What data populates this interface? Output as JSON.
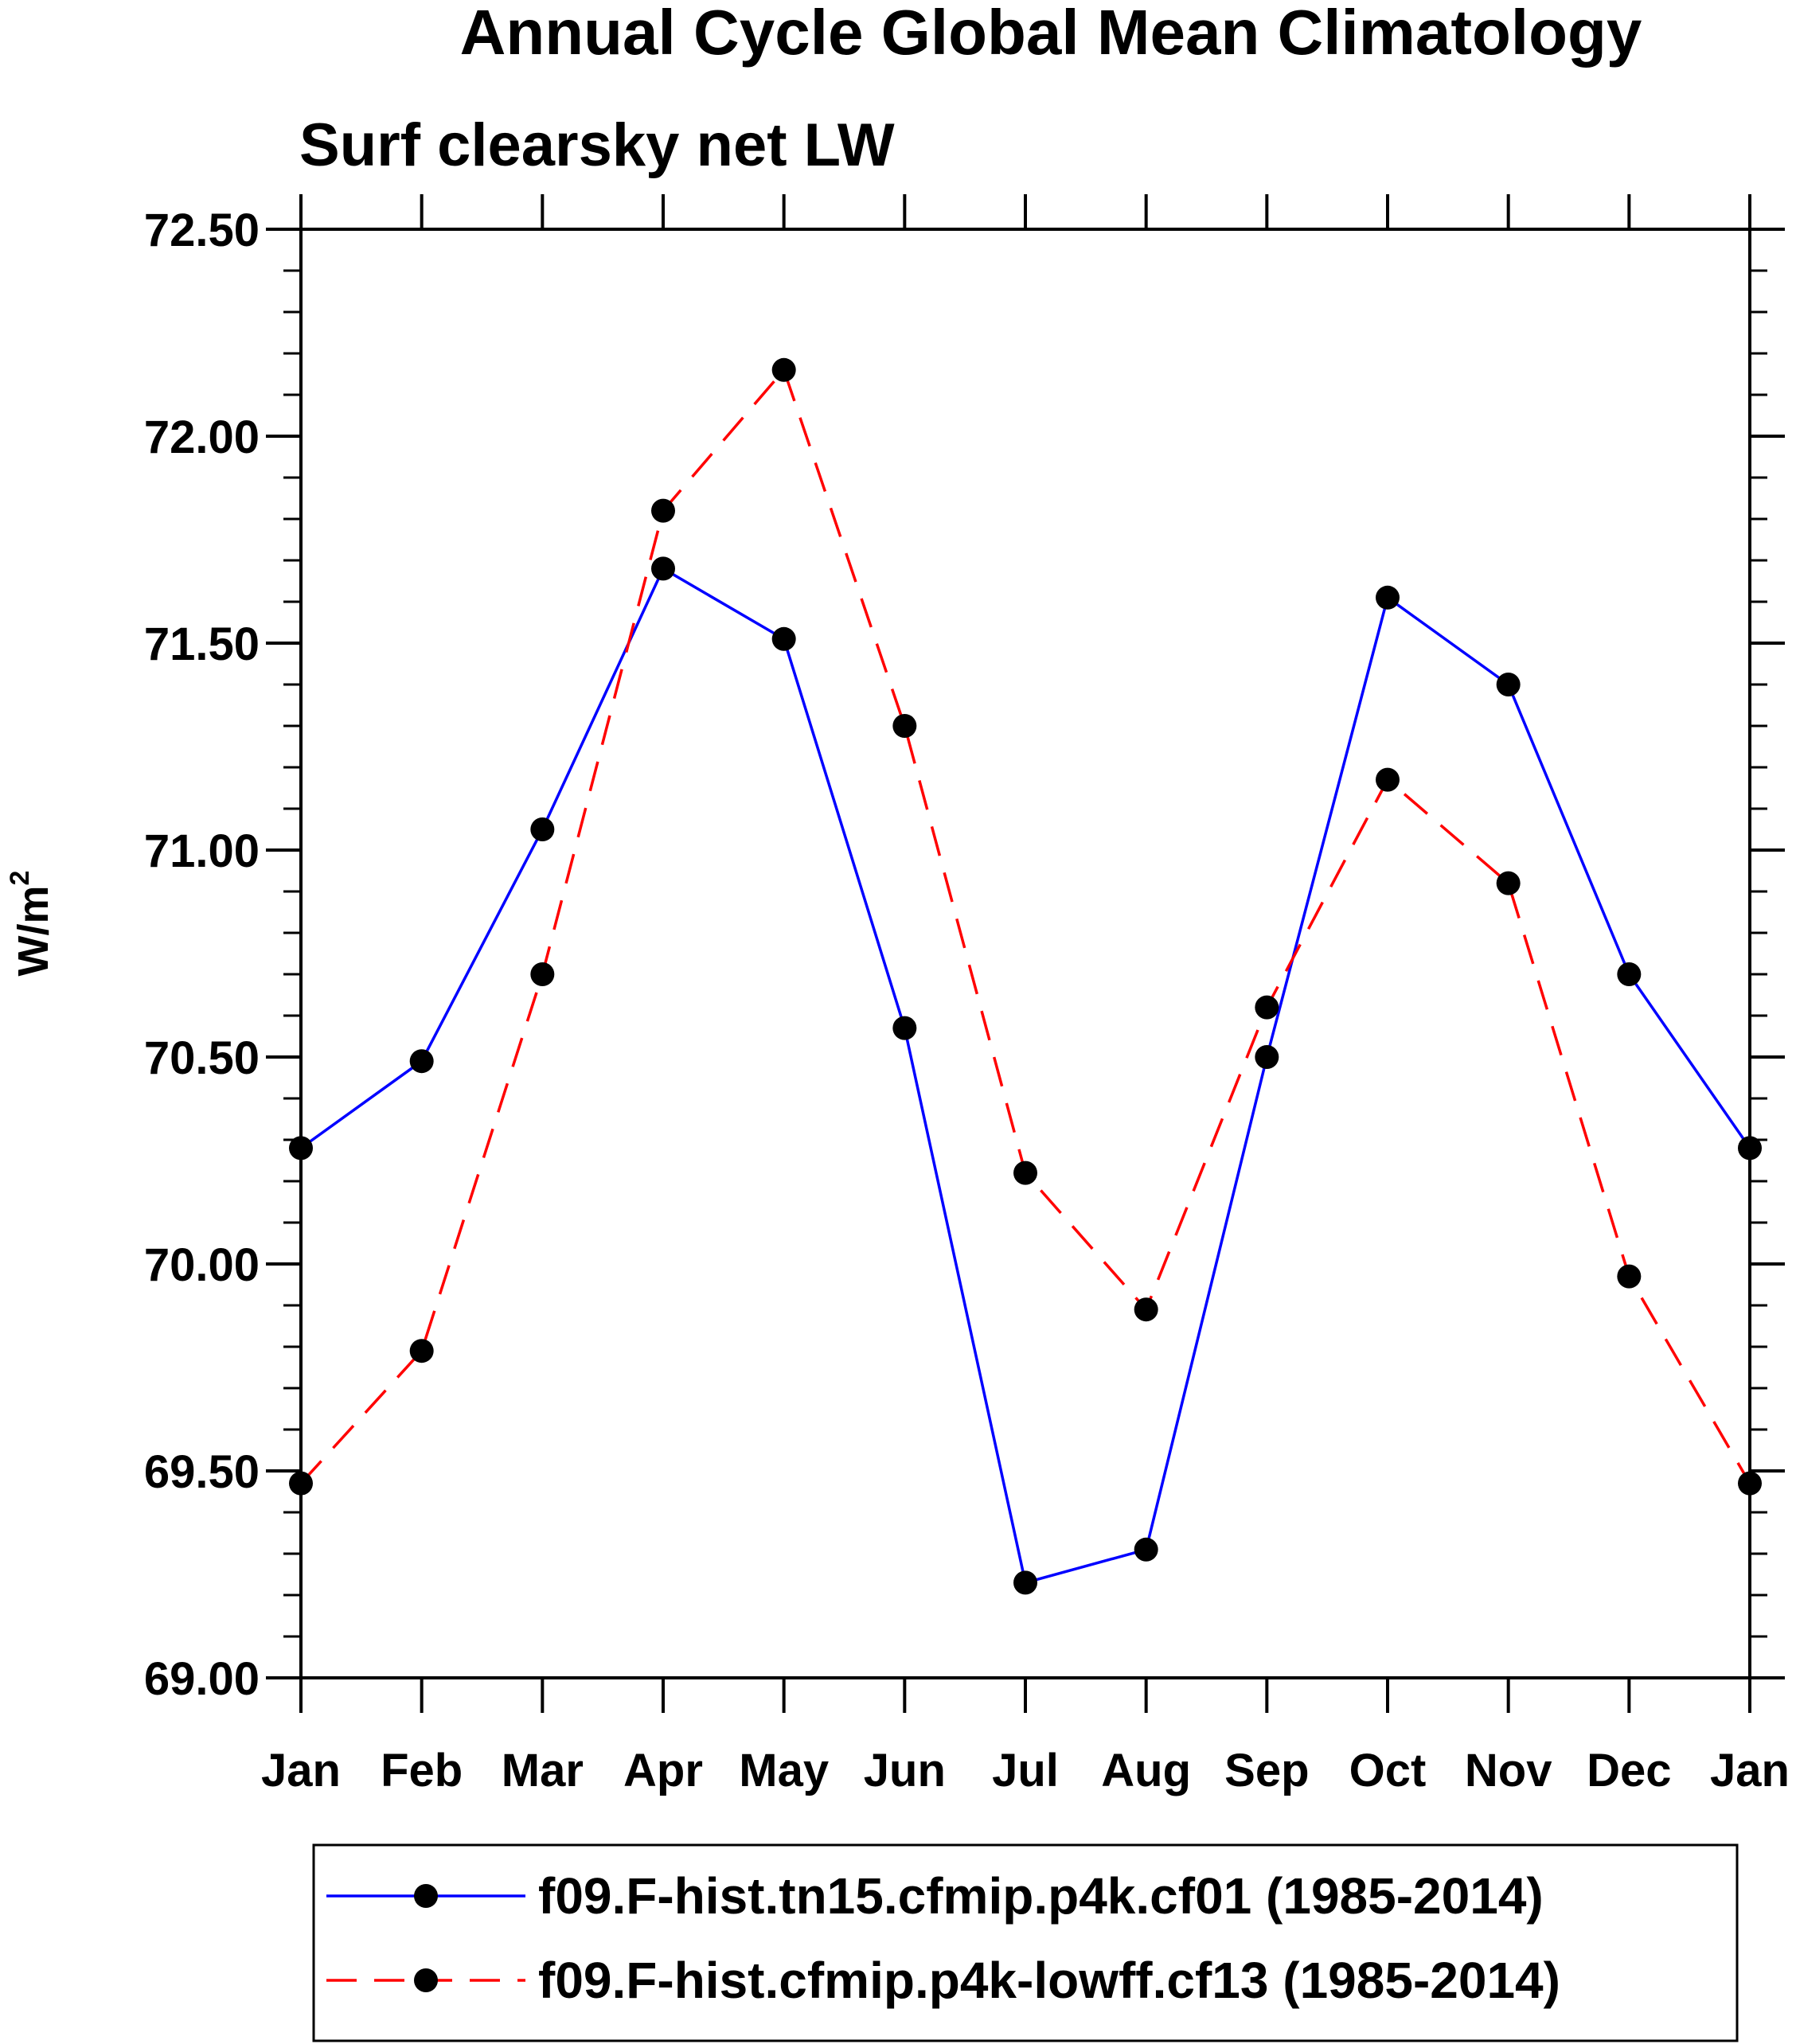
{
  "chart_data": {
    "type": "line",
    "title": "Annual Cycle Global Mean Climatology",
    "subtitle": "Surf clearsky net LW",
    "xlabel": "",
    "ylabel": "W/m",
    "ylabel_superscript": "2",
    "ylim": [
      69.0,
      72.5
    ],
    "yticks": [
      "69.00",
      "69.50",
      "70.00",
      "70.50",
      "71.00",
      "71.50",
      "72.00",
      "72.50"
    ],
    "ytick_values": [
      69.0,
      69.5,
      70.0,
      70.5,
      71.0,
      71.5,
      72.0,
      72.5
    ],
    "categories": [
      "Jan",
      "Feb",
      "Mar",
      "Apr",
      "May",
      "Jun",
      "Jul",
      "Aug",
      "Sep",
      "Oct",
      "Nov",
      "Dec",
      "Jan"
    ],
    "series": [
      {
        "name": "f09.F-hist.tn15.cfmip.p4k.cf01 (1985-2014)",
        "color": "#0000ff",
        "dash": "solid",
        "values": [
          70.28,
          70.49,
          71.05,
          71.68,
          71.51,
          70.57,
          69.23,
          69.31,
          70.5,
          71.61,
          71.4,
          70.7,
          70.28
        ]
      },
      {
        "name": "f09.F-hist.cfmip.p4k-lowff.cf13 (1985-2014)",
        "color": "#ff0000",
        "dash": "dashed",
        "values": [
          69.47,
          69.79,
          70.7,
          71.82,
          72.16,
          71.3,
          70.22,
          69.89,
          70.62,
          71.17,
          70.92,
          69.97,
          69.47
        ]
      }
    ],
    "marker_color": "#000000",
    "legend_position": "bottom"
  }
}
